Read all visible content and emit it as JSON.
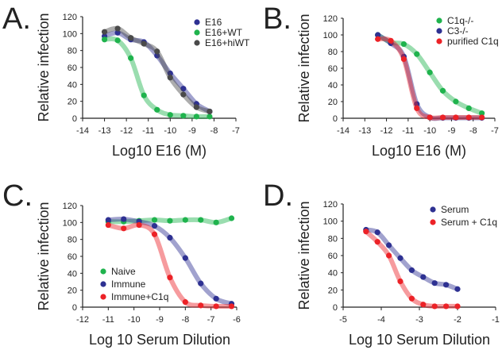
{
  "colors": {
    "blue": "#2e3192",
    "green": "#1fb34d",
    "gray": "#4a4a4a",
    "red": "#ec2227"
  },
  "chart_data": [
    {
      "panel_label": "A.",
      "type": "line",
      "xlabel": "Log10 E16 (M)",
      "ylabel": "Relative infection",
      "xlim": [
        -14,
        -7
      ],
      "ylim": [
        0,
        120
      ],
      "xticks": [
        -14,
        -13,
        -12,
        -11,
        -10,
        -9,
        -8,
        -7
      ],
      "yticks": [
        0,
        20,
        40,
        60,
        80,
        100,
        120
      ],
      "legend_position": "top-right",
      "x": [
        -13,
        -12.4,
        -11.8,
        -11.2,
        -10.6,
        -10,
        -9.4,
        -8.8,
        -8.2
      ],
      "series": [
        {
          "name": "E16",
          "color": "blue",
          "values": [
            97,
            101,
            93,
            90,
            74,
            53,
            35,
            17,
            8
          ]
        },
        {
          "name": "E16+WT",
          "color": "green",
          "values": [
            93,
            92,
            71,
            27,
            10,
            4,
            3,
            2,
            2
          ]
        },
        {
          "name": "E16+hiWT",
          "color": "gray",
          "values": [
            102,
            106,
            95,
            88,
            79,
            48,
            28,
            13,
            8
          ]
        }
      ]
    },
    {
      "panel_label": "B.",
      "type": "line",
      "xlabel": "Log10 E16 (M)",
      "ylabel": "Relative infection",
      "xlim": [
        -14,
        -7
      ],
      "ylim": [
        0,
        120
      ],
      "xticks": [
        -14,
        -13,
        -12,
        -11,
        -10,
        -9,
        -8,
        -7
      ],
      "yticks": [
        0,
        20,
        40,
        60,
        80,
        100,
        120
      ],
      "legend_position": "top-right",
      "x": [
        -12.4,
        -11.8,
        -11.2,
        -10.6,
        -10,
        -9.4,
        -8.8,
        -8.2,
        -7.6
      ],
      "series": [
        {
          "name": "C1q-/-",
          "color": "green",
          "values": [
            100,
            91,
            89,
            77,
            55,
            33,
            20,
            12,
            6
          ]
        },
        {
          "name": "C3-/-",
          "color": "blue",
          "values": [
            100,
            90,
            74,
            17,
            1,
            0.5,
            0.5,
            0.5,
            0.5
          ]
        },
        {
          "name": "purified C1q",
          "color": "red",
          "values": [
            95,
            93,
            71,
            12,
            1,
            1,
            1,
            1,
            1
          ]
        }
      ]
    },
    {
      "panel_label": "C.",
      "type": "line",
      "xlabel": "Log 10 Serum Dilution",
      "ylabel": "Relative infection",
      "xlim": [
        -12,
        -6
      ],
      "ylim": [
        0,
        120
      ],
      "xticks": [
        -12,
        -11,
        -10,
        -9,
        -8,
        -7,
        -6
      ],
      "yticks": [
        0,
        20,
        40,
        60,
        80,
        100,
        120
      ],
      "legend_position": "bottom-left",
      "x": [
        -11,
        -10.4,
        -9.8,
        -9.2,
        -8.6,
        -8,
        -7.4,
        -6.8,
        -6.2
      ],
      "series": [
        {
          "name": "Naive",
          "color": "green",
          "values": [
            101,
            101,
            102,
            103,
            102,
            103,
            103,
            100,
            105
          ]
        },
        {
          "name": "Immune",
          "color": "blue",
          "values": [
            103,
            104,
            101,
            96,
            82,
            58,
            28,
            10,
            4
          ]
        },
        {
          "name": "Immune+C1q",
          "color": "red",
          "values": [
            97,
            93,
            97,
            86,
            35,
            6,
            2,
            1,
            1
          ]
        }
      ]
    },
    {
      "panel_label": "D.",
      "type": "line",
      "xlabel": "Log 10 Serum Dilution",
      "ylabel": "Relative infection",
      "xlim": [
        -5,
        -1
      ],
      "ylim": [
        0,
        120
      ],
      "xticks": [
        -5,
        -4,
        -3,
        -2,
        -1
      ],
      "yticks": [
        0,
        20,
        40,
        60,
        80,
        100,
        120
      ],
      "legend_position": "top-right",
      "x": [
        -4.4,
        -4.1,
        -3.8,
        -3.5,
        -3.2,
        -2.9,
        -2.6,
        -2.3,
        -2
      ],
      "series": [
        {
          "name": "Serum",
          "color": "blue",
          "values": [
            90,
            87,
            72,
            57,
            43,
            35,
            28,
            26,
            21
          ]
        },
        {
          "name": "Serum + C1q",
          "color": "red",
          "values": [
            88,
            76,
            60,
            30,
            10,
            3,
            1,
            1,
            1
          ]
        }
      ]
    }
  ]
}
